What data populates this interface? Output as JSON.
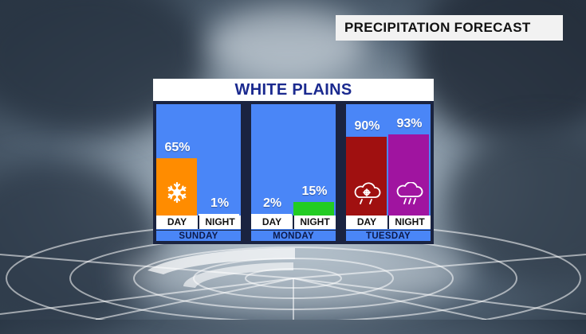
{
  "badge": {
    "text": "PRECIPITATION FORECAST"
  },
  "panel": {
    "title": "WHITE PLAINS"
  },
  "colors": {
    "column_bg": "#4a86f7",
    "snow": "#ff8c00",
    "rain": "#22cc22",
    "mix": "#a01010",
    "thunder_rain": "#a014a0",
    "none": "#ffffff"
  },
  "icons": {
    "sunday_day": "snowflake-icon",
    "tuesday_day": "snow-rain-cloud-icon",
    "tuesday_night": "rain-cloud-icon"
  },
  "chart_data": {
    "type": "bar",
    "title": "WHITE PLAINS",
    "ylim": [
      0,
      100
    ],
    "categories": [
      "SUNDAY",
      "MONDAY",
      "TUESDAY"
    ],
    "periods": [
      "DAY",
      "NIGHT"
    ],
    "days": [
      {
        "name": "SUNDAY",
        "day": {
          "label": "DAY",
          "value": 65,
          "text": "65%"
        },
        "night": {
          "label": "NIGHT",
          "value": 1,
          "text": "1%"
        }
      },
      {
        "name": "MONDAY",
        "day": {
          "label": "DAY",
          "value": 2,
          "text": "2%"
        },
        "night": {
          "label": "NIGHT",
          "value": 15,
          "text": "15%"
        }
      },
      {
        "name": "TUESDAY",
        "day": {
          "label": "DAY",
          "value": 90,
          "text": "90%"
        },
        "night": {
          "label": "NIGHT",
          "value": 93,
          "text": "93%"
        }
      }
    ]
  }
}
